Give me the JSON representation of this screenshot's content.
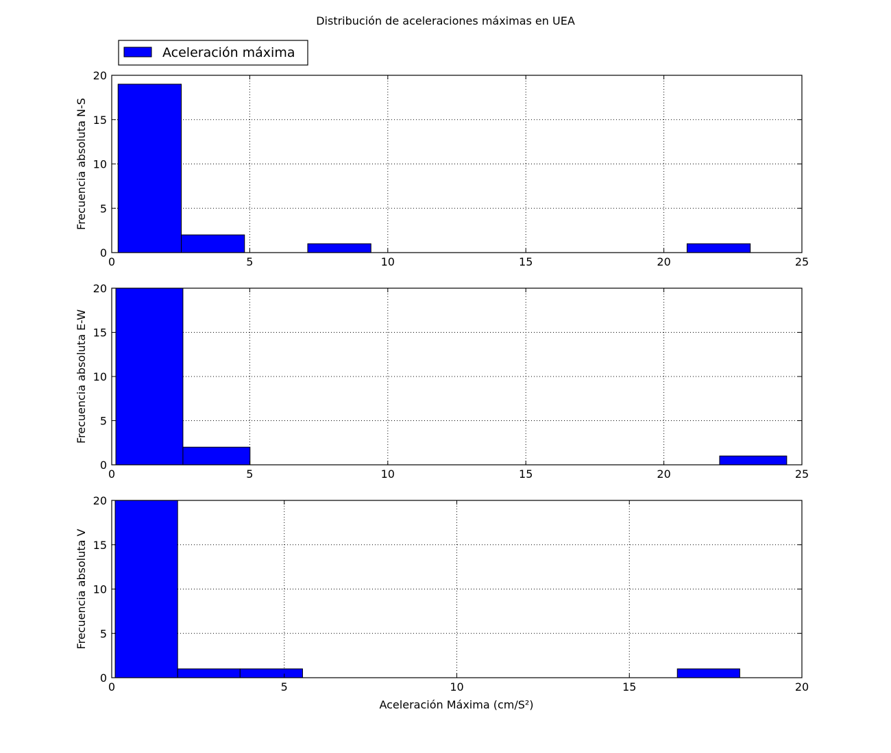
{
  "figure": {
    "title": "Distribución de aceleraciones máximas en UEA",
    "xlabel": "Aceleración Máxima (cm/S²)",
    "legend": {
      "label": "Aceleración máxima",
      "placement": "top-left outside"
    },
    "bar_color": "#0000ff",
    "edge_color": "#000000"
  },
  "chart_data": [
    {
      "type": "bar",
      "ylabel": "Frecuencia absoluta N-S",
      "xlim": [
        0,
        25
      ],
      "ylim": [
        0,
        20
      ],
      "xticks": [
        "0",
        "5",
        "10",
        "15",
        "20",
        "25"
      ],
      "yticks": [
        "0",
        "5",
        "10",
        "15",
        "20"
      ],
      "grid": true,
      "bins": [
        {
          "x0": 0.23,
          "x1": 2.52,
          "count": 19
        },
        {
          "x0": 2.52,
          "x1": 4.81,
          "count": 2
        },
        {
          "x0": 4.81,
          "x1": 7.1,
          "count": 0
        },
        {
          "x0": 7.1,
          "x1": 9.39,
          "count": 1
        },
        {
          "x0": 9.39,
          "x1": 11.68,
          "count": 0
        },
        {
          "x0": 11.68,
          "x1": 13.97,
          "count": 0
        },
        {
          "x0": 13.97,
          "x1": 16.26,
          "count": 0
        },
        {
          "x0": 16.26,
          "x1": 18.55,
          "count": 0
        },
        {
          "x0": 18.55,
          "x1": 20.84,
          "count": 0
        },
        {
          "x0": 20.84,
          "x1": 23.13,
          "count": 1
        }
      ]
    },
    {
      "type": "bar",
      "ylabel": "Frecuencia absoluta E-W",
      "xlim": [
        0,
        25
      ],
      "ylim": [
        0,
        20
      ],
      "xticks": [
        "0",
        "5",
        "10",
        "15",
        "20",
        "25"
      ],
      "yticks": [
        "0",
        "5",
        "10",
        "15",
        "20"
      ],
      "grid": true,
      "bins": [
        {
          "x0": 0.15,
          "x1": 2.58,
          "count": 20
        },
        {
          "x0": 2.58,
          "x1": 5.01,
          "count": 2
        },
        {
          "x0": 5.01,
          "x1": 7.44,
          "count": 0
        },
        {
          "x0": 7.44,
          "x1": 9.87,
          "count": 0
        },
        {
          "x0": 9.87,
          "x1": 12.3,
          "count": 0
        },
        {
          "x0": 12.3,
          "x1": 14.73,
          "count": 0
        },
        {
          "x0": 14.73,
          "x1": 17.16,
          "count": 0
        },
        {
          "x0": 17.16,
          "x1": 19.59,
          "count": 0
        },
        {
          "x0": 19.59,
          "x1": 22.02,
          "count": 0
        },
        {
          "x0": 22.02,
          "x1": 24.45,
          "count": 1
        }
      ]
    },
    {
      "type": "bar",
      "ylabel": "Frecuencia absoluta V",
      "xlim": [
        0,
        20
      ],
      "ylim": [
        0,
        20
      ],
      "xticks": [
        "0",
        "5",
        "10",
        "15",
        "20"
      ],
      "yticks": [
        "0",
        "5",
        "10",
        "15",
        "20"
      ],
      "grid": true,
      "bins": [
        {
          "x0": 0.1,
          "x1": 1.91,
          "count": 20
        },
        {
          "x0": 1.91,
          "x1": 3.72,
          "count": 1
        },
        {
          "x0": 3.72,
          "x1": 5.53,
          "count": 1
        },
        {
          "x0": 5.53,
          "x1": 7.34,
          "count": 0
        },
        {
          "x0": 7.34,
          "x1": 9.15,
          "count": 0
        },
        {
          "x0": 9.15,
          "x1": 10.96,
          "count": 0
        },
        {
          "x0": 10.96,
          "x1": 12.77,
          "count": 0
        },
        {
          "x0": 12.77,
          "x1": 14.58,
          "count": 0
        },
        {
          "x0": 14.58,
          "x1": 16.39,
          "count": 0
        },
        {
          "x0": 16.39,
          "x1": 18.2,
          "count": 1
        }
      ]
    }
  ]
}
